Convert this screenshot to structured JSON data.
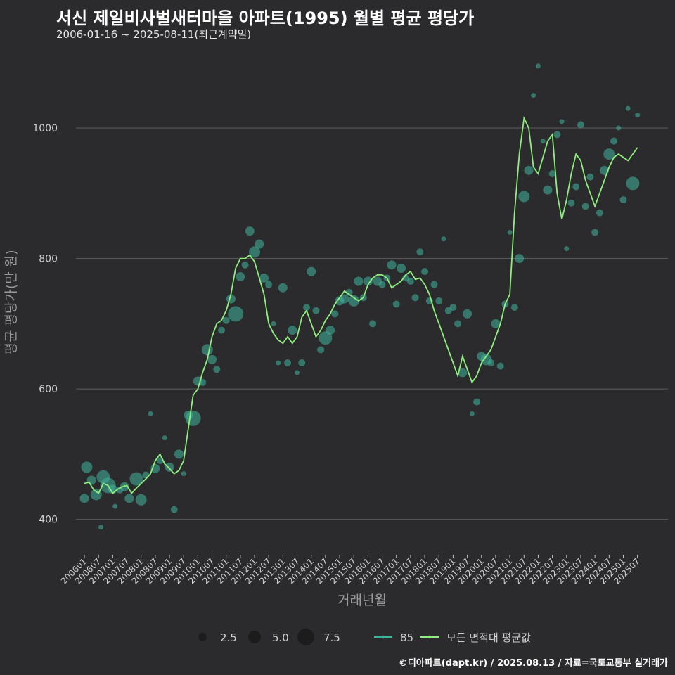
{
  "title": "서신 제일비사벌새터마을 아파트(1995) 월별 평균 평당가",
  "subtitle": "2006-01-16 ~ 2025-08-11(최근계약일)",
  "footer": "©디아파트(dapt.kr) / 2025.08.13 / 자료=국토교통부 실거래가",
  "colors": {
    "background": "#2b2b2d",
    "line": "#90ee7e",
    "points": "#3fb59e",
    "grid": "#5e5e5e"
  },
  "chart_data": {
    "type": "scatter+line",
    "xlabel": "거래년월",
    "ylabel": "평균 평당가(만 원)",
    "ylim": [
      350,
      1110
    ],
    "yticks": [
      400,
      600,
      800,
      1000
    ],
    "grid": true,
    "xtick_labels": [
      "200601",
      "200607",
      "200701",
      "200707",
      "200801",
      "200807",
      "200901",
      "200907",
      "201001",
      "201007",
      "201101",
      "201107",
      "201201",
      "201207",
      "201301",
      "201307",
      "201401",
      "201407",
      "201501",
      "201507",
      "201601",
      "201607",
      "201701",
      "201707",
      "201801",
      "201807",
      "201901",
      "201907",
      "202001",
      "202007",
      "202101",
      "202107",
      "202201",
      "202207",
      "202301",
      "202307",
      "202401",
      "202407",
      "202501",
      "202507"
    ],
    "legend": {
      "size_title": "",
      "sizes": [
        {
          "label": "2.5",
          "value": 2.5
        },
        {
          "label": "5.0",
          "value": 5.0
        },
        {
          "label": "7.5",
          "value": 7.5
        }
      ],
      "series": [
        {
          "label": "85",
          "kind": "points"
        },
        {
          "label": "모든 면적대 평균값",
          "kind": "line"
        }
      ]
    },
    "line_series": {
      "name": "모든 면적대 평균값",
      "x": [
        "2006-01",
        "2006-03",
        "2006-05",
        "2006-07",
        "2006-09",
        "2006-11",
        "2007-01",
        "2007-03",
        "2007-05",
        "2007-07",
        "2007-09",
        "2007-11",
        "2008-01",
        "2008-03",
        "2008-05",
        "2008-07",
        "2008-09",
        "2008-11",
        "2009-01",
        "2009-03",
        "2009-05",
        "2009-07",
        "2009-09",
        "2009-11",
        "2010-01",
        "2010-03",
        "2010-05",
        "2010-07",
        "2010-09",
        "2010-11",
        "2011-01",
        "2011-03",
        "2011-05",
        "2011-07",
        "2011-09",
        "2011-11",
        "2012-01",
        "2012-03",
        "2012-05",
        "2012-07",
        "2012-09",
        "2012-11",
        "2013-01",
        "2013-03",
        "2013-05",
        "2013-07",
        "2013-09",
        "2013-11",
        "2014-01",
        "2014-03",
        "2014-05",
        "2014-07",
        "2014-09",
        "2014-11",
        "2015-01",
        "2015-03",
        "2015-05",
        "2015-07",
        "2015-09",
        "2015-11",
        "2016-01",
        "2016-03",
        "2016-05",
        "2016-07",
        "2016-09",
        "2016-11",
        "2017-01",
        "2017-03",
        "2017-05",
        "2017-07",
        "2017-09",
        "2017-11",
        "2018-01",
        "2018-03",
        "2018-05",
        "2018-07",
        "2018-09",
        "2018-11",
        "2019-01",
        "2019-03",
        "2019-05",
        "2019-07",
        "2019-09",
        "2019-11",
        "2020-01",
        "2020-03",
        "2020-05",
        "2020-07",
        "2020-09",
        "2020-11",
        "2021-01",
        "2021-03",
        "2021-05",
        "2021-07",
        "2021-09",
        "2021-11",
        "2022-01",
        "2022-03",
        "2022-05",
        "2022-07",
        "2022-09",
        "2022-11",
        "2023-01",
        "2023-03",
        "2023-05",
        "2023-07",
        "2023-09",
        "2023-11",
        "2024-01",
        "2024-03",
        "2024-05",
        "2024-07",
        "2024-09",
        "2024-11",
        "2025-01",
        "2025-03",
        "2025-05",
        "2025-07"
      ],
      "values": [
        455,
        457,
        445,
        440,
        455,
        452,
        440,
        446,
        450,
        452,
        440,
        448,
        455,
        462,
        470,
        490,
        500,
        485,
        478,
        470,
        475,
        490,
        540,
        590,
        600,
        625,
        645,
        680,
        700,
        705,
        720,
        745,
        785,
        800,
        800,
        805,
        795,
        770,
        745,
        700,
        685,
        675,
        670,
        680,
        670,
        680,
        710,
        720,
        700,
        680,
        690,
        705,
        715,
        730,
        740,
        750,
        745,
        740,
        735,
        740,
        760,
        770,
        775,
        775,
        770,
        755,
        760,
        765,
        775,
        780,
        768,
        770,
        760,
        745,
        720,
        700,
        680,
        660,
        640,
        620,
        650,
        630,
        610,
        620,
        640,
        650,
        660,
        680,
        700,
        730,
        745,
        870,
        960,
        1015,
        1000,
        940,
        930,
        955,
        980,
        990,
        900,
        860,
        890,
        930,
        960,
        950,
        920,
        900,
        880,
        900,
        920,
        940,
        955,
        960,
        955,
        950,
        960,
        970
      ]
    },
    "points": [
      {
        "x": "2006-01",
        "y": 432,
        "size": 3
      },
      {
        "x": "2006-02",
        "y": 480,
        "size": 4
      },
      {
        "x": "2006-04",
        "y": 460,
        "size": 3
      },
      {
        "x": "2006-06",
        "y": 438,
        "size": 4
      },
      {
        "x": "2006-08",
        "y": 388,
        "size": 1
      },
      {
        "x": "2006-09",
        "y": 465,
        "size": 5
      },
      {
        "x": "2006-11",
        "y": 452,
        "size": 6
      },
      {
        "x": "2007-01",
        "y": 446,
        "size": 3
      },
      {
        "x": "2007-02",
        "y": 420,
        "size": 1
      },
      {
        "x": "2007-04",
        "y": 445,
        "size": 2
      },
      {
        "x": "2007-06",
        "y": 450,
        "size": 3
      },
      {
        "x": "2007-08",
        "y": 432,
        "size": 3
      },
      {
        "x": "2007-11",
        "y": 462,
        "size": 5
      },
      {
        "x": "2008-01",
        "y": 430,
        "size": 4
      },
      {
        "x": "2008-03",
        "y": 468,
        "size": 2
      },
      {
        "x": "2008-05",
        "y": 562,
        "size": 1
      },
      {
        "x": "2008-07",
        "y": 478,
        "size": 3
      },
      {
        "x": "2008-09",
        "y": 490,
        "size": 2
      },
      {
        "x": "2008-11",
        "y": 525,
        "size": 1
      },
      {
        "x": "2009-01",
        "y": 480,
        "size": 3
      },
      {
        "x": "2009-03",
        "y": 415,
        "size": 2
      },
      {
        "x": "2009-05",
        "y": 500,
        "size": 3
      },
      {
        "x": "2009-07",
        "y": 470,
        "size": 1
      },
      {
        "x": "2009-09",
        "y": 560,
        "size": 3
      },
      {
        "x": "2009-11",
        "y": 555,
        "size": 6
      },
      {
        "x": "2010-01",
        "y": 612,
        "size": 3
      },
      {
        "x": "2010-03",
        "y": 610,
        "size": 2
      },
      {
        "x": "2010-05",
        "y": 660,
        "size": 4
      },
      {
        "x": "2010-07",
        "y": 645,
        "size": 3
      },
      {
        "x": "2010-09",
        "y": 630,
        "size": 2
      },
      {
        "x": "2010-11",
        "y": 690,
        "size": 2
      },
      {
        "x": "2011-01",
        "y": 705,
        "size": 2
      },
      {
        "x": "2011-03",
        "y": 738,
        "size": 3
      },
      {
        "x": "2011-05",
        "y": 715,
        "size": 6
      },
      {
        "x": "2011-07",
        "y": 772,
        "size": 3
      },
      {
        "x": "2011-09",
        "y": 790,
        "size": 2
      },
      {
        "x": "2011-11",
        "y": 842,
        "size": 3
      },
      {
        "x": "2012-01",
        "y": 810,
        "size": 4
      },
      {
        "x": "2012-03",
        "y": 822,
        "size": 3
      },
      {
        "x": "2012-05",
        "y": 770,
        "size": 3
      },
      {
        "x": "2012-07",
        "y": 760,
        "size": 2
      },
      {
        "x": "2012-09",
        "y": 700,
        "size": 1
      },
      {
        "x": "2012-11",
        "y": 640,
        "size": 1
      },
      {
        "x": "2013-01",
        "y": 755,
        "size": 3
      },
      {
        "x": "2013-03",
        "y": 640,
        "size": 2
      },
      {
        "x": "2013-05",
        "y": 690,
        "size": 3
      },
      {
        "x": "2013-07",
        "y": 625,
        "size": 1
      },
      {
        "x": "2013-09",
        "y": 640,
        "size": 2
      },
      {
        "x": "2013-11",
        "y": 725,
        "size": 2
      },
      {
        "x": "2014-01",
        "y": 780,
        "size": 3
      },
      {
        "x": "2014-03",
        "y": 720,
        "size": 2
      },
      {
        "x": "2014-05",
        "y": 660,
        "size": 2
      },
      {
        "x": "2014-07",
        "y": 678,
        "size": 5
      },
      {
        "x": "2014-09",
        "y": 690,
        "size": 3
      },
      {
        "x": "2014-11",
        "y": 715,
        "size": 2
      },
      {
        "x": "2015-01",
        "y": 735,
        "size": 3
      },
      {
        "x": "2015-03",
        "y": 738,
        "size": 3
      },
      {
        "x": "2015-05",
        "y": 748,
        "size": 2
      },
      {
        "x": "2015-07",
        "y": 735,
        "size": 4
      },
      {
        "x": "2015-09",
        "y": 765,
        "size": 3
      },
      {
        "x": "2015-11",
        "y": 740,
        "size": 2
      },
      {
        "x": "2016-01",
        "y": 765,
        "size": 3
      },
      {
        "x": "2016-03",
        "y": 700,
        "size": 2
      },
      {
        "x": "2016-05",
        "y": 765,
        "size": 3
      },
      {
        "x": "2016-07",
        "y": 760,
        "size": 2
      },
      {
        "x": "2016-09",
        "y": 770,
        "size": 2
      },
      {
        "x": "2016-11",
        "y": 790,
        "size": 3
      },
      {
        "x": "2017-01",
        "y": 730,
        "size": 2
      },
      {
        "x": "2017-03",
        "y": 785,
        "size": 3
      },
      {
        "x": "2017-05",
        "y": 770,
        "size": 2
      },
      {
        "x": "2017-07",
        "y": 765,
        "size": 2
      },
      {
        "x": "2017-09",
        "y": 740,
        "size": 2
      },
      {
        "x": "2017-11",
        "y": 810,
        "size": 2
      },
      {
        "x": "2018-01",
        "y": 780,
        "size": 2
      },
      {
        "x": "2018-03",
        "y": 735,
        "size": 2
      },
      {
        "x": "2018-05",
        "y": 760,
        "size": 2
      },
      {
        "x": "2018-07",
        "y": 735,
        "size": 2
      },
      {
        "x": "2018-09",
        "y": 830,
        "size": 1
      },
      {
        "x": "2018-11",
        "y": 720,
        "size": 2
      },
      {
        "x": "2019-01",
        "y": 725,
        "size": 2
      },
      {
        "x": "2019-03",
        "y": 700,
        "size": 2
      },
      {
        "x": "2019-05",
        "y": 625,
        "size": 3
      },
      {
        "x": "2019-07",
        "y": 715,
        "size": 3
      },
      {
        "x": "2019-09",
        "y": 562,
        "size": 1
      },
      {
        "x": "2019-11",
        "y": 580,
        "size": 2
      },
      {
        "x": "2020-01",
        "y": 650,
        "size": 3
      },
      {
        "x": "2020-03",
        "y": 645,
        "size": 4
      },
      {
        "x": "2020-05",
        "y": 640,
        "size": 2
      },
      {
        "x": "2020-07",
        "y": 700,
        "size": 3
      },
      {
        "x": "2020-09",
        "y": 635,
        "size": 2
      },
      {
        "x": "2020-11",
        "y": 730,
        "size": 2
      },
      {
        "x": "2021-01",
        "y": 840,
        "size": 1
      },
      {
        "x": "2021-03",
        "y": 725,
        "size": 2
      },
      {
        "x": "2021-05",
        "y": 800,
        "size": 3
      },
      {
        "x": "2021-07",
        "y": 895,
        "size": 4
      },
      {
        "x": "2021-09",
        "y": 935,
        "size": 3
      },
      {
        "x": "2021-11",
        "y": 1050,
        "size": 1
      },
      {
        "x": "2022-01",
        "y": 1095,
        "size": 1
      },
      {
        "x": "2022-03",
        "y": 980,
        "size": 1
      },
      {
        "x": "2022-05",
        "y": 905,
        "size": 3
      },
      {
        "x": "2022-07",
        "y": 930,
        "size": 2
      },
      {
        "x": "2022-09",
        "y": 990,
        "size": 2
      },
      {
        "x": "2022-11",
        "y": 1010,
        "size": 1
      },
      {
        "x": "2023-01",
        "y": 815,
        "size": 1
      },
      {
        "x": "2023-03",
        "y": 885,
        "size": 2
      },
      {
        "x": "2023-05",
        "y": 910,
        "size": 2
      },
      {
        "x": "2023-07",
        "y": 1005,
        "size": 2
      },
      {
        "x": "2023-09",
        "y": 880,
        "size": 2
      },
      {
        "x": "2023-11",
        "y": 925,
        "size": 2
      },
      {
        "x": "2024-01",
        "y": 840,
        "size": 2
      },
      {
        "x": "2024-03",
        "y": 870,
        "size": 2
      },
      {
        "x": "2024-05",
        "y": 935,
        "size": 3
      },
      {
        "x": "2024-07",
        "y": 960,
        "size": 4
      },
      {
        "x": "2024-09",
        "y": 980,
        "size": 2
      },
      {
        "x": "2024-11",
        "y": 1000,
        "size": 1
      },
      {
        "x": "2025-01",
        "y": 890,
        "size": 2
      },
      {
        "x": "2025-03",
        "y": 1030,
        "size": 1
      },
      {
        "x": "2025-05",
        "y": 915,
        "size": 5
      },
      {
        "x": "2025-07",
        "y": 1020,
        "size": 1
      }
    ]
  }
}
